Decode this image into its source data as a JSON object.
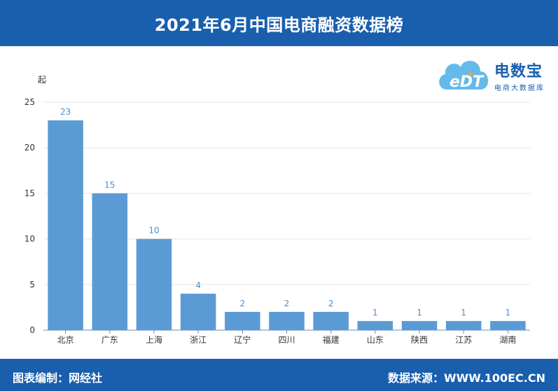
{
  "header": {
    "title": "2021年6月中国电商融资数据榜"
  },
  "logo": {
    "mark": "eDT",
    "name": "电数宝",
    "subtitle": "电商大数据库",
    "colors": [
      "#4aaee8",
      "#f4a23b",
      "#1a5fae"
    ]
  },
  "footer": {
    "editor": "图表编制：网经社",
    "source": "数据来源：WWW.100EC.CN"
  },
  "colors": {
    "header_bg": "#1a5fae",
    "bar": "#5b9bd5",
    "value_label": "#4a8fd0"
  },
  "chart_data": {
    "type": "bar",
    "ylabel": "起",
    "ylim": [
      0,
      25
    ],
    "yticks": [
      0,
      5,
      10,
      15,
      20,
      25
    ],
    "grid": true,
    "categories": [
      "北京",
      "广东",
      "上海",
      "浙江",
      "辽宁",
      "四川",
      "福建",
      "山东",
      "陕西",
      "江苏",
      "湖南"
    ],
    "values": [
      23,
      15,
      10,
      4,
      2,
      2,
      2,
      1,
      1,
      1,
      1
    ]
  }
}
